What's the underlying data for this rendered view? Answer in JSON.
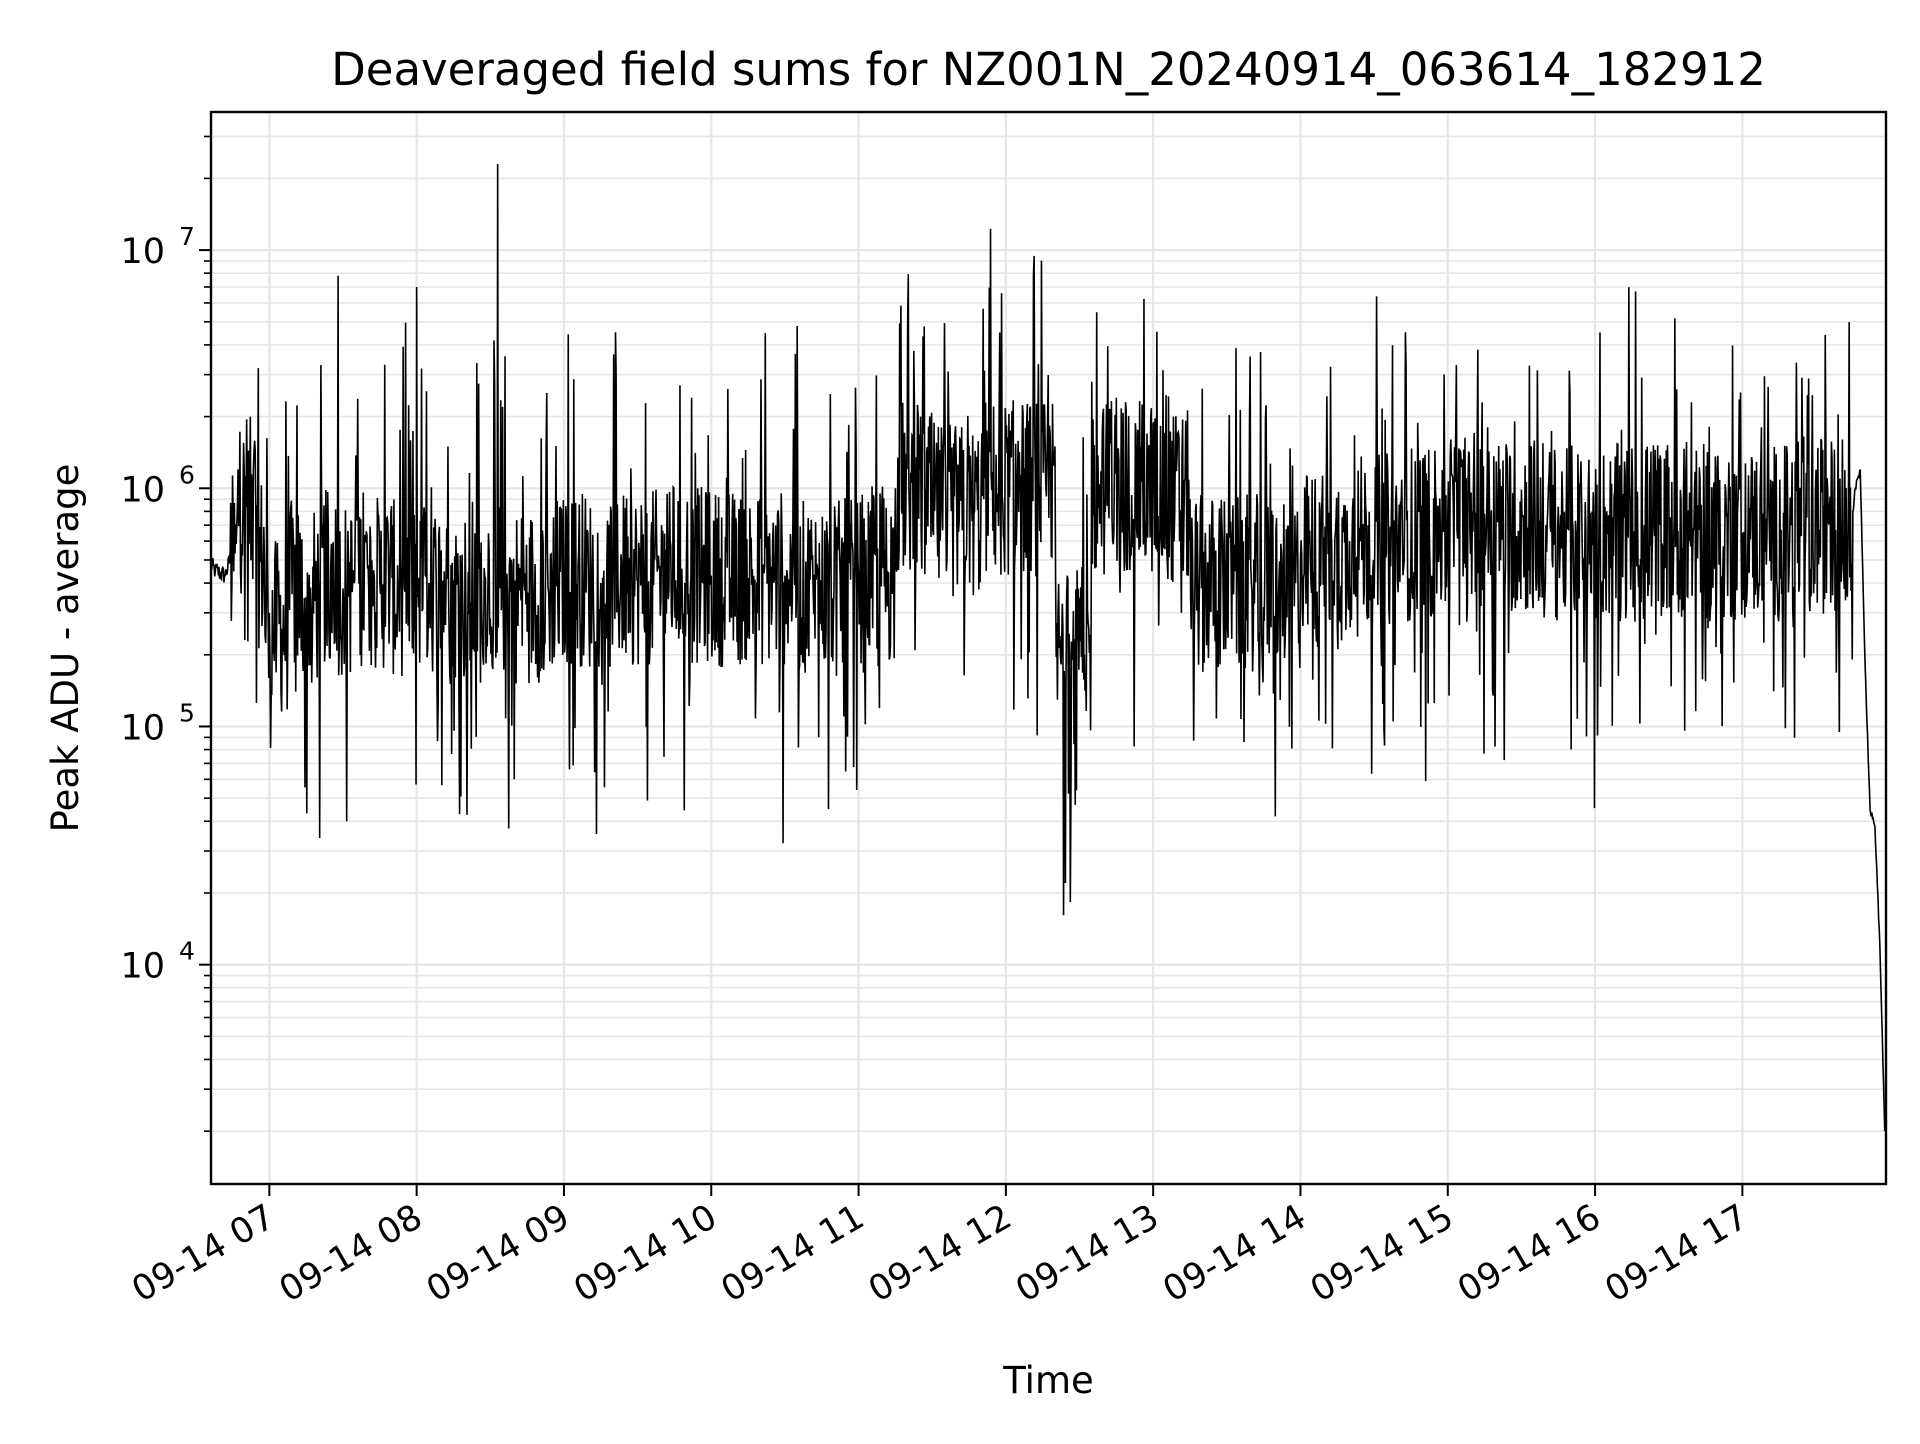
{
  "chart_data": {
    "type": "line",
    "title": "Deaveraged field sums for NZ001N_20240914_063614_182912",
    "xlabel": "Time",
    "ylabel": "Peak ADU - average",
    "y_scale": "log",
    "ylim": [
      1200,
      38000000
    ],
    "xlim": [
      "2024-09-14 06:36:14",
      "2024-09-14 17:58:30"
    ],
    "grid": true,
    "grid_minor": true,
    "legend": "none",
    "line_color": "#000000",
    "grid_color": "#e6e6e6",
    "x_ticks": [
      {
        "time": "2024-09-14 07:00",
        "label": "09-14 07"
      },
      {
        "time": "2024-09-14 08:00",
        "label": "09-14 08"
      },
      {
        "time": "2024-09-14 09:00",
        "label": "09-14 09"
      },
      {
        "time": "2024-09-14 10:00",
        "label": "09-14 10"
      },
      {
        "time": "2024-09-14 11:00",
        "label": "09-14 11"
      },
      {
        "time": "2024-09-14 12:00",
        "label": "09-14 12"
      },
      {
        "time": "2024-09-14 13:00",
        "label": "09-14 13"
      },
      {
        "time": "2024-09-14 14:00",
        "label": "09-14 14"
      },
      {
        "time": "2024-09-14 15:00",
        "label": "09-14 15"
      },
      {
        "time": "2024-09-14 16:00",
        "label": "09-14 16"
      },
      {
        "time": "2024-09-14 17:00",
        "label": "09-14 17"
      }
    ],
    "y_ticks": [
      {
        "value": 10000,
        "base": "10",
        "exp": "4"
      },
      {
        "value": 100000,
        "base": "10",
        "exp": "5"
      },
      {
        "value": 1000000,
        "base": "10",
        "exp": "6"
      },
      {
        "value": 10000000,
        "base": "10",
        "exp": "7"
      }
    ],
    "series": [
      {
        "x": [
          "2024-09-14 06:36",
          "2024-09-14 06:38",
          "2024-09-14 06:42",
          "2024-09-14 06:44",
          "2024-09-14 06:47",
          "2024-09-14 06:52",
          "2024-09-14 06:55",
          "2024-09-14 06:58",
          "2024-09-14 07:00",
          "2024-09-14 07:03",
          "2024-09-14 07:08",
          "2024-09-14 07:12",
          "2024-09-14 07:15",
          "2024-09-14 07:20",
          "2024-09-14 07:25",
          "2024-09-14 07:28",
          "2024-09-14 07:30",
          "2024-09-14 07:34",
          "2024-09-14 07:40",
          "2024-09-14 07:45",
          "2024-09-14 07:47",
          "2024-09-14 07:50",
          "2024-09-14 07:55",
          "2024-09-14 08:00",
          "2024-09-14 08:05",
          "2024-09-14 08:08",
          "2024-09-14 08:12",
          "2024-09-14 08:20",
          "2024-09-14 08:28",
          "2024-09-14 08:33",
          "2024-09-14 08:34",
          "2024-09-14 08:40",
          "2024-09-14 08:48",
          "2024-09-14 08:55",
          "2024-09-14 09:00",
          "2024-09-14 09:10",
          "2024-09-14 09:15",
          "2024-09-14 09:20",
          "2024-09-14 09:30",
          "2024-09-14 09:40",
          "2024-09-14 09:48",
          "2024-09-14 09:52",
          "2024-09-14 10:00",
          "2024-09-14 10:15",
          "2024-09-14 10:30",
          "2024-09-14 10:35",
          "2024-09-14 10:50",
          "2024-09-14 11:00",
          "2024-09-14 11:15",
          "2024-09-14 11:25",
          "2024-09-14 11:30",
          "2024-09-14 11:40",
          "2024-09-14 11:50",
          "2024-09-14 12:00",
          "2024-09-14 12:10",
          "2024-09-14 12:20",
          "2024-09-14 12:26",
          "2024-09-14 12:35",
          "2024-09-14 12:45",
          "2024-09-14 12:55",
          "2024-09-14 13:05",
          "2024-09-14 13:15",
          "2024-09-14 13:25",
          "2024-09-14 13:40",
          "2024-09-14 14:00",
          "2024-09-14 14:20",
          "2024-09-14 14:40",
          "2024-09-14 15:00",
          "2024-09-14 15:10",
          "2024-09-14 15:20",
          "2024-09-14 15:40",
          "2024-09-14 16:00",
          "2024-09-14 16:20",
          "2024-09-14 16:40",
          "2024-09-14 17:00",
          "2024-09-14 17:20",
          "2024-09-14 17:35",
          "2024-09-14 17:45",
          "2024-09-14 17:46",
          "2024-09-14 17:48",
          "2024-09-14 17:50",
          "2024-09-14 17:52",
          "2024-09-14 17:54",
          "2024-09-14 17:56",
          "2024-09-14 17:58"
        ],
        "y": [
          480000,
          450000,
          430000,
          500000,
          850000,
          1000000,
          850000,
          500000,
          300000,
          260000,
          420000,
          380000,
          350000,
          420000,
          450000,
          7800000,
          380000,
          420000,
          460000,
          400000,
          3300000,
          420000,
          380000,
          7000000,
          400000,
          380000,
          420000,
          350000,
          420000,
          23000000,
          380000,
          410000,
          360000,
          400000,
          430000,
          420000,
          400000,
          450000,
          420000,
          470000,
          460000,
          2400000,
          430000,
          420000,
          430000,
          4800000,
          380000,
          430000,
          1000000,
          1200000,
          900000,
          800000,
          1300000,
          1800000,
          2200000,
          1500000,
          200000,
          2800000,
          2400000,
          1500000,
          1000000,
          900000,
          400000,
          400000,
          500000,
          600000,
          650000,
          750000,
          800000,
          750000,
          700000,
          650000,
          700000,
          680000,
          650000,
          700000,
          720000,
          800000,
          1000000,
          1200000,
          180000,
          45000,
          38000,
          12000,
          2000
        ]
      }
    ]
  }
}
